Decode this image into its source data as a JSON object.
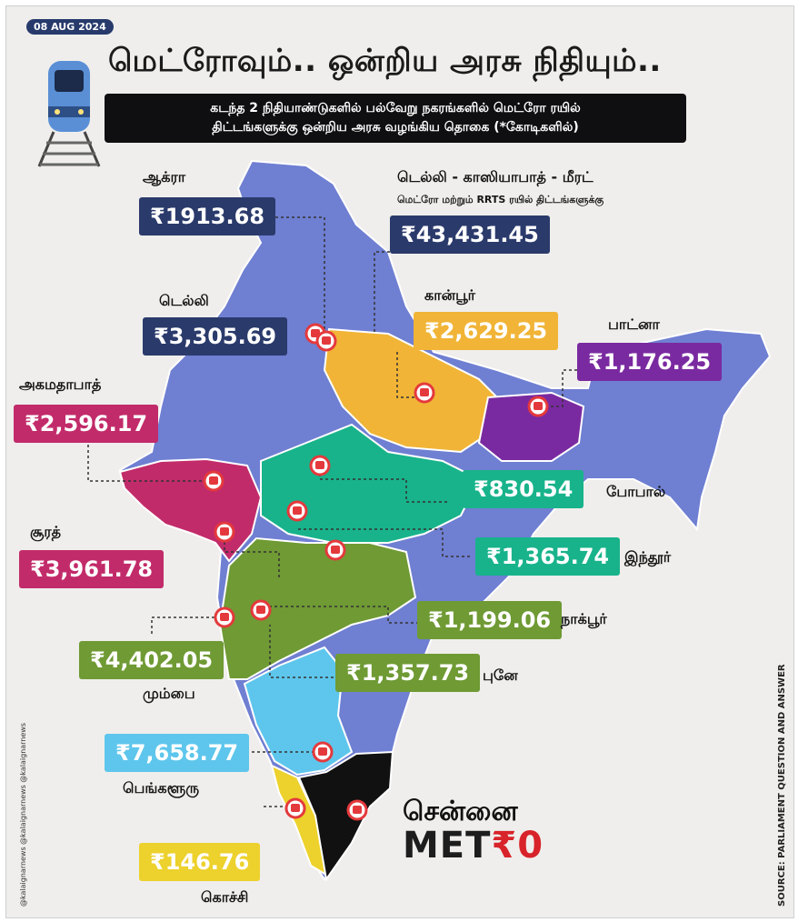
{
  "date": "08 AUG 2024",
  "title": "மெட்ரோவும்.. ஒன்றிய அரசு நிதியும்..",
  "subtitle_line1": "கடந்த 2 நிதியாண்டுகளில் பல்வேறு நகரங்களில் மெட்ரோ ரயில்",
  "subtitle_line2": "திட்டங்களுக்கு ஒன்றிய அரசு வழங்கிய தொகை (*கோடிகளில்)",
  "source": "SOURCE: PARLIAMENT QUESTION AND ANSWER",
  "handles": "@kalaignarnews @kalaignarnews @kalaignarnews",
  "chennai_label": "சென்னை",
  "metro_logo_prefix": "MET",
  "metro_logo_suffix": "₹0",
  "cities": {
    "agra": {
      "name": "ஆக்ரா",
      "amount": "₹1913.68"
    },
    "delhi_ncr": {
      "name": "டெல்லி - காஸியாபாத் - மீரட்",
      "note": "மெட்ரோ மற்றும் RRTS ரயில் திட்டங்களுக்கு",
      "amount": "₹43,431.45"
    },
    "delhi": {
      "name": "டெல்லி",
      "amount": "₹3,305.69"
    },
    "kanpur": {
      "name": "கான்பூர்",
      "amount": "₹2,629.25"
    },
    "patna": {
      "name": "பாட்னா",
      "amount": "₹1,176.25"
    },
    "ahmedabad": {
      "name": "அகமதாபாத்",
      "amount": "₹2,596.17"
    },
    "bhopal": {
      "name": "போபால்",
      "amount": "₹830.54"
    },
    "surat": {
      "name": "சூரத்",
      "amount": "₹3,961.78"
    },
    "indore": {
      "name": "இந்தூர்",
      "amount": "₹1,365.74"
    },
    "nagpur": {
      "name": "நாக்பூர்",
      "amount": "₹1,199.06"
    },
    "mumbai": {
      "name": "மும்பை",
      "amount": "₹4,402.05"
    },
    "pune": {
      "name": "புனே",
      "amount": "₹1,357.73"
    },
    "bengaluru": {
      "name": "பெங்களூரு",
      "amount": "₹7,658.77"
    },
    "kochi": {
      "name": "கொச்சி",
      "amount": "₹146.76"
    }
  },
  "colors": {
    "navy": "#2a3a6b",
    "yellow": "#f1b436",
    "purple": "#7a2aa0",
    "pink": "#c22b6a",
    "teal": "#18b38b",
    "lime": "#6f9a34",
    "sky": "#5ec6ec",
    "gold": "#edd12c",
    "map_base": "#6f7fd2",
    "tamilnadu": "#111111",
    "marker": "#e4393c"
  }
}
